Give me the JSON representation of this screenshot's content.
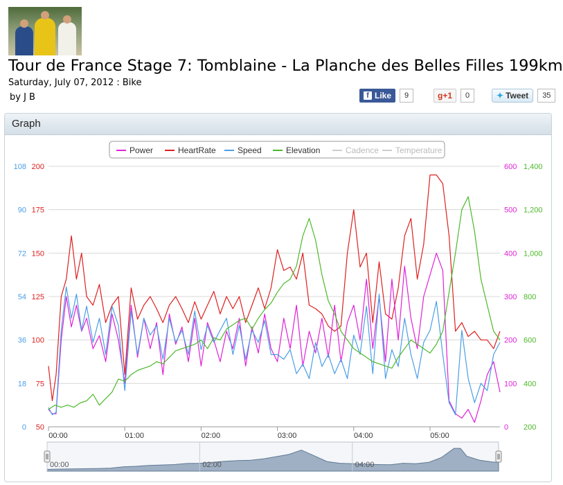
{
  "header": {
    "title": "Tour de France Stage 7: Tomblaine - La Planche des Belles Filles 199km",
    "date": "Saturday, July 07, 2012 : Bike",
    "author": "by J B"
  },
  "social": {
    "facebook": {
      "label": "Like",
      "count": "9",
      "icon": "facebook-icon"
    },
    "google": {
      "label": "+1",
      "count": "0",
      "icon": "google-plus-icon"
    },
    "twitter": {
      "label": "Tweet",
      "count": "35",
      "icon": "twitter-bird-icon"
    }
  },
  "panel": {
    "title": "Graph"
  },
  "colors": {
    "power": "#e020d8",
    "heartrate": "#dd1f1f",
    "speed": "#4a9ee6",
    "elevation": "#4cb82a",
    "disabled": "#cccccc",
    "grid": "#d8d8d8"
  },
  "chart_data": {
    "type": "line",
    "legend": {
      "placement": "top-center",
      "entries": [
        {
          "name": "Power",
          "color": "#e020d8",
          "enabled": true
        },
        {
          "name": "HeartRate",
          "color": "#dd1f1f",
          "enabled": true
        },
        {
          "name": "Speed",
          "color": "#4a9ee6",
          "enabled": true
        },
        {
          "name": "Elevation",
          "color": "#4cb82a",
          "enabled": true
        },
        {
          "name": "Cadence",
          "color": "#cccccc",
          "enabled": false
        },
        {
          "name": "Temperature",
          "color": "#cccccc",
          "enabled": false
        }
      ]
    },
    "x_axis": {
      "range_minutes": [
        0,
        355
      ],
      "ticks": [
        {
          "label": "00:00",
          "value": 0
        },
        {
          "label": "01:00",
          "value": 60
        },
        {
          "label": "02:00",
          "value": 120
        },
        {
          "label": "03:00",
          "value": 180
        },
        {
          "label": "04:00",
          "value": 240
        },
        {
          "label": "05:00",
          "value": 300
        }
      ]
    },
    "axes": {
      "speed": {
        "range": [
          0,
          108
        ],
        "ticks": [
          "0",
          "18",
          "36",
          "54",
          "72",
          "90",
          "108"
        ],
        "color": "#4a9ee6"
      },
      "heartrate": {
        "range": [
          50,
          200
        ],
        "ticks": [
          "50",
          "75",
          "100",
          "125",
          "150",
          "175",
          "200"
        ],
        "color": "#dd1f1f"
      },
      "power": {
        "range": [
          0,
          600
        ],
        "ticks": [
          "0",
          "100",
          "200",
          "300",
          "400",
          "500",
          "600"
        ],
        "color": "#e020d8"
      },
      "elevation": {
        "range": [
          200,
          1400
        ],
        "ticks": [
          "200",
          "400",
          "600",
          "800",
          "1,000",
          "1,200",
          "1,400"
        ],
        "color": "#4cb82a"
      }
    },
    "grid": true,
    "series": [
      {
        "name": "HeartRate",
        "axis": "heartrate",
        "x": [
          0,
          3,
          6,
          10,
          14,
          18,
          22,
          26,
          30,
          35,
          40,
          45,
          50,
          55,
          60,
          65,
          70,
          75,
          80,
          85,
          90,
          95,
          100,
          105,
          110,
          115,
          120,
          125,
          130,
          135,
          140,
          145,
          150,
          155,
          160,
          165,
          170,
          175,
          180,
          185,
          190,
          195,
          200,
          205,
          210,
          215,
          220,
          225,
          230,
          235,
          240,
          245,
          250,
          255,
          260,
          265,
          270,
          275,
          280,
          285,
          290,
          295,
          300,
          305,
          310,
          315,
          320,
          325,
          330,
          335,
          340,
          345,
          350,
          355
        ],
        "values": [
          85,
          65,
          80,
          125,
          135,
          160,
          135,
          150,
          125,
          120,
          132,
          110,
          120,
          125,
          80,
          130,
          112,
          120,
          125,
          118,
          110,
          120,
          125,
          118,
          110,
          122,
          112,
          120,
          128,
          115,
          125,
          118,
          125,
          110,
          120,
          130,
          118,
          130,
          152,
          140,
          142,
          135,
          150,
          120,
          118,
          115,
          108,
          105,
          108,
          150,
          175,
          142,
          150,
          110,
          145,
          115,
          112,
          130,
          160,
          170,
          135,
          155,
          195,
          195,
          190,
          160,
          105,
          110,
          102,
          105,
          100,
          100,
          95,
          105
        ]
      },
      {
        "name": "Power",
        "axis": "power",
        "x": [
          0,
          3,
          6,
          10,
          14,
          18,
          22,
          26,
          30,
          35,
          40,
          45,
          50,
          55,
          60,
          65,
          70,
          75,
          80,
          85,
          90,
          95,
          100,
          105,
          110,
          115,
          120,
          125,
          130,
          135,
          140,
          145,
          150,
          155,
          160,
          165,
          170,
          175,
          180,
          185,
          190,
          195,
          200,
          205,
          210,
          215,
          220,
          225,
          230,
          235,
          240,
          245,
          250,
          255,
          260,
          265,
          270,
          275,
          280,
          285,
          290,
          295,
          300,
          305,
          310,
          315,
          320,
          325,
          330,
          335,
          340,
          345,
          350,
          355
        ],
        "values": [
          40,
          30,
          30,
          200,
          300,
          230,
          280,
          220,
          250,
          180,
          210,
          150,
          260,
          200,
          100,
          280,
          160,
          250,
          180,
          240,
          120,
          260,
          190,
          230,
          150,
          250,
          140,
          240,
          200,
          150,
          220,
          180,
          250,
          140,
          230,
          170,
          260,
          180,
          150,
          250,
          180,
          280,
          140,
          220,
          170,
          250,
          160,
          280,
          150,
          240,
          280,
          200,
          340,
          180,
          300,
          150,
          340,
          200,
          370,
          250,
          180,
          300,
          350,
          400,
          360,
          60,
          30,
          20,
          40,
          10,
          60,
          120,
          150,
          80
        ]
      },
      {
        "name": "Speed",
        "axis": "speed",
        "x": [
          0,
          3,
          6,
          10,
          14,
          18,
          22,
          26,
          30,
          35,
          40,
          45,
          50,
          55,
          60,
          65,
          70,
          75,
          80,
          85,
          90,
          95,
          100,
          105,
          110,
          115,
          120,
          125,
          130,
          135,
          140,
          145,
          150,
          155,
          160,
          165,
          170,
          175,
          180,
          185,
          190,
          195,
          200,
          205,
          210,
          215,
          220,
          225,
          230,
          235,
          240,
          245,
          250,
          255,
          260,
          265,
          270,
          275,
          280,
          285,
          290,
          295,
          300,
          305,
          310,
          315,
          320,
          325,
          330,
          335,
          340,
          345,
          350,
          355
        ],
        "values": [
          8,
          5,
          6,
          40,
          58,
          45,
          55,
          40,
          50,
          35,
          45,
          30,
          50,
          42,
          15,
          48,
          30,
          45,
          38,
          42,
          28,
          45,
          35,
          40,
          30,
          48,
          32,
          42,
          35,
          40,
          45,
          30,
          42,
          28,
          40,
          35,
          44,
          30,
          30,
          28,
          32,
          22,
          26,
          20,
          35,
          25,
          30,
          22,
          28,
          20,
          38,
          30,
          50,
          22,
          55,
          20,
          32,
          25,
          45,
          30,
          20,
          35,
          40,
          52,
          30,
          10,
          5,
          40,
          20,
          10,
          18,
          15,
          30,
          35
        ]
      },
      {
        "name": "Elevation",
        "axis": "elevation",
        "x": [
          0,
          5,
          10,
          15,
          20,
          25,
          30,
          35,
          40,
          45,
          50,
          55,
          60,
          65,
          70,
          75,
          80,
          85,
          90,
          95,
          100,
          105,
          110,
          115,
          120,
          125,
          130,
          135,
          140,
          145,
          150,
          155,
          160,
          165,
          170,
          175,
          180,
          185,
          190,
          195,
          200,
          205,
          210,
          215,
          220,
          225,
          230,
          235,
          240,
          245,
          250,
          255,
          260,
          265,
          270,
          275,
          280,
          285,
          290,
          295,
          300,
          305,
          310,
          315,
          320,
          325,
          330,
          335,
          340,
          345,
          350,
          355
        ],
        "values": [
          280,
          300,
          290,
          300,
          290,
          310,
          320,
          350,
          300,
          330,
          360,
          420,
          410,
          440,
          460,
          470,
          480,
          500,
          490,
          520,
          550,
          560,
          570,
          580,
          600,
          560,
          610,
          600,
          650,
          670,
          690,
          700,
          650,
          700,
          740,
          770,
          820,
          860,
          880,
          940,
          1080,
          1160,
          1060,
          900,
          780,
          720,
          640,
          600,
          560,
          540,
          520,
          500,
          490,
          480,
          470,
          520,
          560,
          600,
          580,
          560,
          540,
          580,
          640,
          820,
          1000,
          1200,
          1260,
          1100,
          880,
          760,
          640,
          600
        ]
      }
    ]
  },
  "navigator": {
    "ticks": [
      {
        "label": "00:00",
        "value": 0
      },
      {
        "label": "02:00",
        "value": 120
      },
      {
        "label": "04:00",
        "value": 240
      }
    ],
    "elevation_x": [
      0,
      10,
      20,
      30,
      40,
      50,
      60,
      70,
      80,
      90,
      100,
      110,
      120,
      130,
      140,
      150,
      160,
      170,
      180,
      190,
      200,
      210,
      220,
      230,
      240,
      250,
      260,
      270,
      280,
      290,
      300,
      310,
      320,
      325,
      330,
      340,
      350,
      355
    ],
    "elevation": [
      280,
      295,
      300,
      310,
      320,
      340,
      400,
      420,
      460,
      480,
      500,
      550,
      560,
      600,
      650,
      680,
      700,
      760,
      860,
      960,
      1160,
      900,
      640,
      560,
      540,
      520,
      500,
      490,
      560,
      540,
      600,
      820,
      1240,
      1240,
      880,
      700,
      620,
      600
    ]
  }
}
